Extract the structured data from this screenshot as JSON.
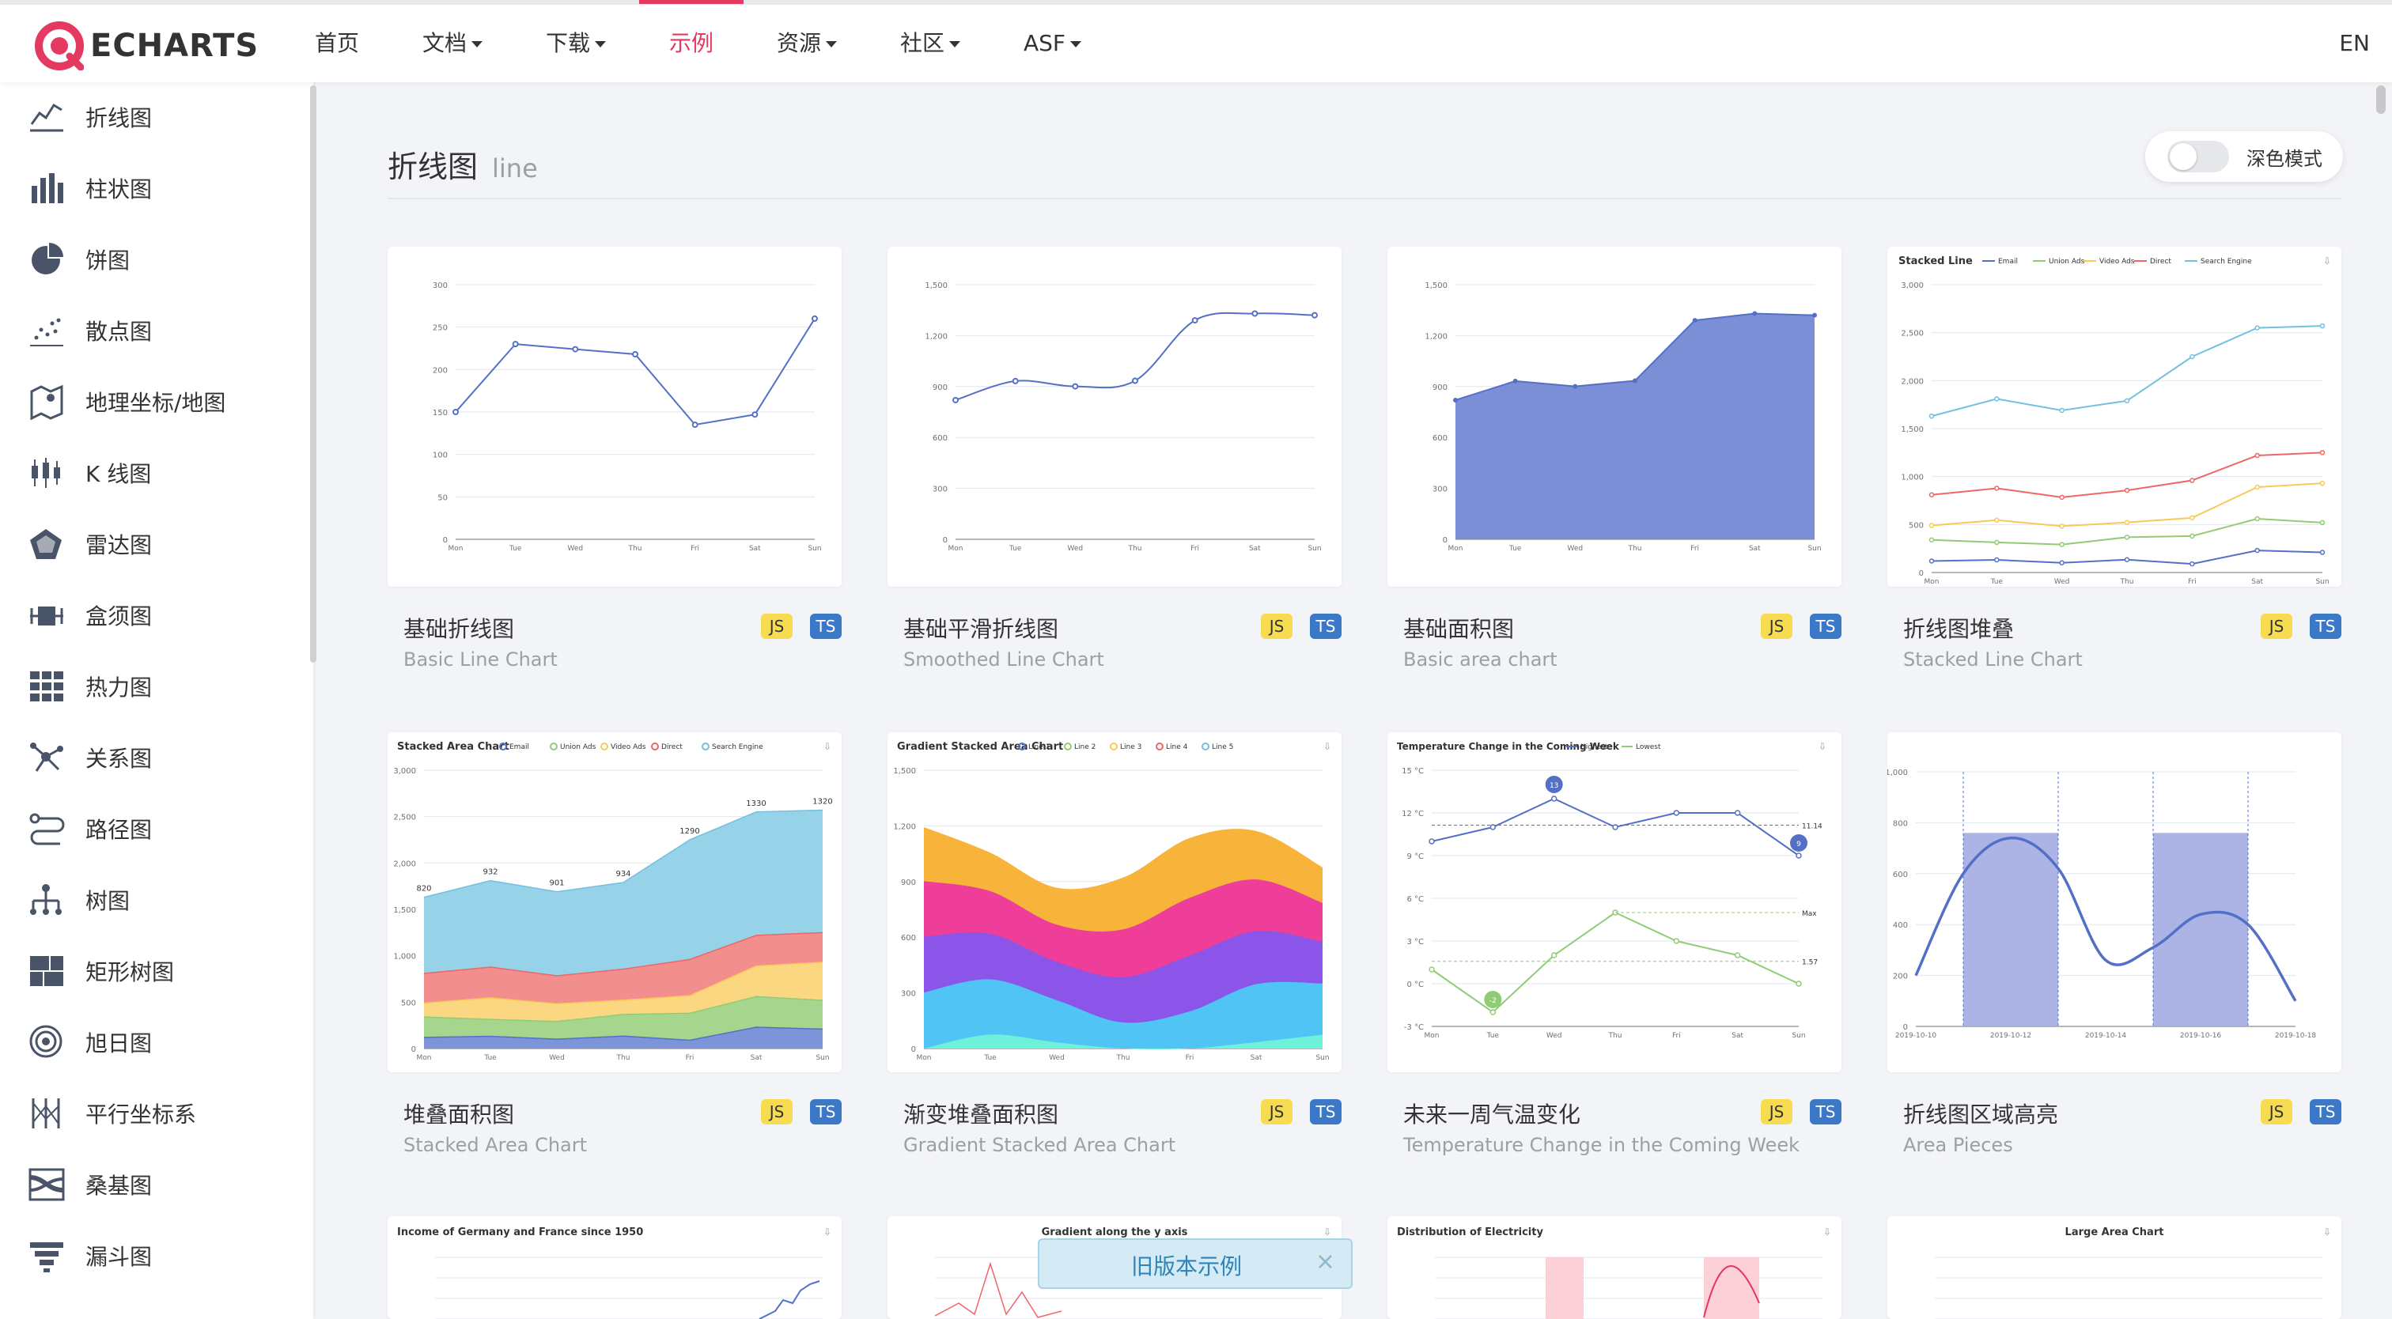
{
  "brand": {
    "logo_text": "ECHARTS",
    "accent": "#e43961"
  },
  "nav": {
    "items": [
      {
        "label": "首页",
        "dropdown": false
      },
      {
        "label": "文档",
        "dropdown": true
      },
      {
        "label": "下载",
        "dropdown": true
      },
      {
        "label": "示例",
        "dropdown": false,
        "active": true
      },
      {
        "label": "资源",
        "dropdown": true
      },
      {
        "label": "社区",
        "dropdown": true
      },
      {
        "label": "ASF",
        "dropdown": true
      }
    ],
    "lang": "EN"
  },
  "sidebar": {
    "items": [
      {
        "label": "折线图",
        "icon": "line-chart-icon"
      },
      {
        "label": "柱状图",
        "icon": "bar-chart-icon"
      },
      {
        "label": "饼图",
        "icon": "pie-chart-icon"
      },
      {
        "label": "散点图",
        "icon": "scatter-chart-icon"
      },
      {
        "label": "地理坐标/地图",
        "icon": "map-icon"
      },
      {
        "label": "K 线图",
        "icon": "candlestick-icon"
      },
      {
        "label": "雷达图",
        "icon": "radar-icon"
      },
      {
        "label": "盒须图",
        "icon": "boxplot-icon"
      },
      {
        "label": "热力图",
        "icon": "heatmap-icon"
      },
      {
        "label": "关系图",
        "icon": "graph-icon"
      },
      {
        "label": "路径图",
        "icon": "lines-icon"
      },
      {
        "label": "树图",
        "icon": "tree-icon"
      },
      {
        "label": "矩形树图",
        "icon": "treemap-icon"
      },
      {
        "label": "旭日图",
        "icon": "sunburst-icon"
      },
      {
        "label": "平行坐标系",
        "icon": "parallel-icon"
      },
      {
        "label": "桑基图",
        "icon": "sankey-icon"
      },
      {
        "label": "漏斗图",
        "icon": "funnel-icon"
      }
    ]
  },
  "main": {
    "heading_zh": "折线图",
    "heading_en": "line",
    "dark_mode": {
      "label": "深色模式",
      "on": false
    },
    "badge_js": "JS",
    "badge_ts": "TS",
    "cards": [
      {
        "title": "基础折线图",
        "subtitle": "Basic Line Chart"
      },
      {
        "title": "基础平滑折线图",
        "subtitle": "Smoothed Line Chart"
      },
      {
        "title": "基础面积图",
        "subtitle": "Basic area chart"
      },
      {
        "title": "折线图堆叠",
        "subtitle": "Stacked Line Chart"
      },
      {
        "title": "堆叠面积图",
        "subtitle": "Stacked Area Chart"
      },
      {
        "title": "渐变堆叠面积图",
        "subtitle": "Gradient Stacked Area Chart"
      },
      {
        "title": "未来一周气温变化",
        "subtitle": "Temperature Change in the Coming Week"
      },
      {
        "title": "折线图区域高亮",
        "subtitle": "Area Pieces"
      }
    ],
    "bottom_thumbs": [
      {
        "caption": "Income of Germany and France since 1950"
      },
      {
        "caption": "Gradient along the y axis"
      },
      {
        "caption": "Distribution of Electricity"
      },
      {
        "caption": "Large Area Chart"
      }
    ]
  },
  "old_banner": {
    "label": "旧版本示例",
    "close": "×"
  },
  "chart_data": [
    {
      "type": "line",
      "x": [
        "Mon",
        "Tue",
        "Wed",
        "Thu",
        "Fri",
        "Sat",
        "Sun"
      ],
      "series": [
        {
          "values": [
            150,
            230,
            224,
            218,
            135,
            147,
            260
          ]
        }
      ],
      "ylim": [
        0,
        300
      ],
      "yticks": [
        "0",
        "50",
        "100",
        "150",
        "200",
        "250",
        "300"
      ]
    },
    {
      "type": "line",
      "smooth": true,
      "x": [
        "Mon",
        "Tue",
        "Wed",
        "Thu",
        "Fri",
        "Sat",
        "Sun"
      ],
      "series": [
        {
          "values": [
            820,
            932,
            901,
            934,
            1290,
            1330,
            1320
          ]
        }
      ],
      "ylim": [
        0,
        1500
      ],
      "yticks": [
        "0",
        "300",
        "600",
        "900",
        "1,200",
        "1,500"
      ]
    },
    {
      "type": "area",
      "x": [
        "Mon",
        "Tue",
        "Wed",
        "Thu",
        "Fri",
        "Sat",
        "Sun"
      ],
      "series": [
        {
          "values": [
            820,
            932,
            901,
            934,
            1290,
            1330,
            1320
          ]
        }
      ],
      "ylim": [
        0,
        1500
      ],
      "yticks": [
        "0",
        "300",
        "600",
        "900",
        "1,200",
        "1,500"
      ]
    },
    {
      "type": "line",
      "title": "Stacked Line",
      "legend": [
        "Email",
        "Union Ads",
        "Video Ads",
        "Direct",
        "Search Engine"
      ],
      "x": [
        "Mon",
        "Tue",
        "Wed",
        "Thu",
        "Fri",
        "Sat",
        "Sun"
      ],
      "series": [
        {
          "name": "Email",
          "values": [
            120,
            132,
            101,
            134,
            90,
            230,
            210
          ]
        },
        {
          "name": "Union Ads",
          "values": [
            340,
            314,
            292,
            368,
            380,
            560,
            520
          ]
        },
        {
          "name": "Video Ads",
          "values": [
            490,
            546,
            483,
            522,
            570,
            890,
            930
          ]
        },
        {
          "name": "Direct",
          "values": [
            810,
            878,
            784,
            856,
            960,
            1220,
            1250
          ]
        },
        {
          "name": "Search Engine",
          "values": [
            1630,
            1810,
            1690,
            1790,
            2250,
            2550,
            2570
          ]
        }
      ],
      "ylim": [
        0,
        3000
      ],
      "yticks": [
        "0",
        "500",
        "1,000",
        "1,500",
        "2,000",
        "2,500",
        "3,000"
      ]
    },
    {
      "type": "area",
      "title": "Stacked Area Chart",
      "legend": [
        "Email",
        "Union Ads",
        "Video Ads",
        "Direct",
        "Search Engine"
      ],
      "x": [
        "Mon",
        "Tue",
        "Wed",
        "Thu",
        "Fri",
        "Sat",
        "Sun"
      ],
      "series": [
        {
          "name": "Email",
          "values": [
            120,
            132,
            101,
            134,
            90,
            230,
            210
          ]
        },
        {
          "name": "Union Ads",
          "values": [
            340,
            314,
            292,
            368,
            380,
            560,
            520
          ]
        },
        {
          "name": "Video Ads",
          "values": [
            490,
            546,
            483,
            522,
            570,
            890,
            930
          ]
        },
        {
          "name": "Direct",
          "values": [
            810,
            878,
            784,
            856,
            960,
            1220,
            1250
          ]
        },
        {
          "name": "Search Engine",
          "values": [
            1630,
            1810,
            1690,
            1790,
            2250,
            2550,
            2570
          ]
        }
      ],
      "labels": [
        "820",
        "932",
        "901",
        "934",
        "1290",
        "1330",
        "1320"
      ],
      "ylim": [
        0,
        3000
      ],
      "yticks": [
        "0",
        "500",
        "1,000",
        "1,500",
        "2,000",
        "2,500",
        "3,000"
      ]
    },
    {
      "type": "area",
      "title": "Gradient Stacked Area Chart",
      "legend": [
        "Line 1",
        "Line 2",
        "Line 3",
        "Line 4",
        "Line 5"
      ],
      "x": [
        "Mon",
        "Tue",
        "Wed",
        "Thu",
        "Fri",
        "Sat",
        "Sun"
      ],
      "ylim": [
        0,
        1500
      ],
      "yticks": [
        "0",
        "300",
        "600",
        "900",
        "1,200",
        "1,500"
      ]
    },
    {
      "type": "line",
      "title": "Temperature Change in the Coming Week",
      "legend": [
        "Highest",
        "Lowest"
      ],
      "x": [
        "Mon",
        "Tue",
        "Wed",
        "Thu",
        "Fri",
        "Sat",
        "Sun"
      ],
      "series": [
        {
          "name": "Highest",
          "values": [
            10,
            11,
            13,
            11,
            12,
            12,
            9
          ]
        },
        {
          "name": "Lowest",
          "values": [
            1,
            -2,
            2,
            5,
            3,
            2,
            0
          ]
        }
      ],
      "markers": [
        "13",
        "9",
        "-2",
        "11.14",
        "Max",
        "1.57"
      ],
      "ylim": [
        -3,
        15
      ],
      "yticks": [
        "-3 °C",
        "0 °C",
        "3 °C",
        "6 °C",
        "9 °C",
        "12 °C",
        "15 °C"
      ]
    },
    {
      "type": "line",
      "smooth": true,
      "x": [
        "2019-10-10",
        "2019-10-12",
        "2019-10-14",
        "2019-10-16",
        "2019-10-18"
      ],
      "ylim": [
        0,
        1000
      ],
      "yticks": [
        "0",
        "200",
        "400",
        "600",
        "800",
        "1,000"
      ]
    }
  ]
}
